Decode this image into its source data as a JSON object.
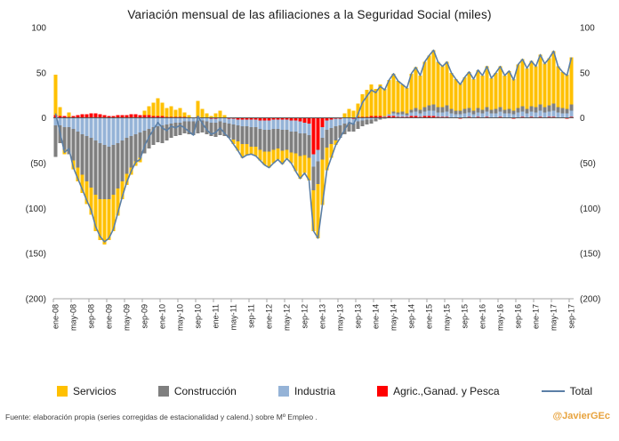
{
  "title": "Variación mensual de las afiliaciones a la Seguridad Social (miles)",
  "footer": {
    "source": "Fuente: elaboración propia  (series corregidas de estacionalidad y calend.) sobre Mº Empleo .",
    "handle": "@JavierGEc"
  },
  "chart_data": {
    "type": "bar",
    "subtype": "stacked-bars-with-total-line",
    "title": "Variación mensual de las afiliaciones a la Seguridad Social (miles)",
    "xlabel": "",
    "ylabel": "",
    "ylim": [
      -200,
      100
    ],
    "grid": false,
    "legend_position": "bottom",
    "y_ticks": [
      {
        "value": 100,
        "label": "100"
      },
      {
        "value": 50,
        "label": "50"
      },
      {
        "value": 0,
        "label": "0"
      },
      {
        "value": -50,
        "label": "(50)"
      },
      {
        "value": -100,
        "label": "(100)"
      },
      {
        "value": -150,
        "label": "(150)"
      },
      {
        "value": -200,
        "label": "(200)"
      }
    ],
    "x_tick_every": 4,
    "categories": [
      "ene-08",
      "feb-08",
      "mar-08",
      "abr-08",
      "may-08",
      "jun-08",
      "jul-08",
      "ago-08",
      "sep-08",
      "oct-08",
      "nov-08",
      "dic-08",
      "ene-09",
      "feb-09",
      "mar-09",
      "abr-09",
      "may-09",
      "jun-09",
      "jul-09",
      "ago-09",
      "sep-09",
      "oct-09",
      "nov-09",
      "dic-09",
      "ene-10",
      "feb-10",
      "mar-10",
      "abr-10",
      "may-10",
      "jun-10",
      "jul-10",
      "ago-10",
      "sep-10",
      "oct-10",
      "nov-10",
      "dic-10",
      "ene-11",
      "feb-11",
      "mar-11",
      "abr-11",
      "may-11",
      "jun-11",
      "jul-11",
      "ago-11",
      "sep-11",
      "oct-11",
      "nov-11",
      "dic-11",
      "ene-12",
      "feb-12",
      "mar-12",
      "abr-12",
      "may-12",
      "jun-12",
      "jul-12",
      "ago-12",
      "sep-12",
      "oct-12",
      "nov-12",
      "dic-12",
      "ene-13",
      "feb-13",
      "mar-13",
      "abr-13",
      "may-13",
      "jun-13",
      "jul-13",
      "ago-13",
      "sep-13",
      "oct-13",
      "nov-13",
      "dic-13",
      "ene-14",
      "feb-14",
      "mar-14",
      "abr-14",
      "may-14",
      "jun-14",
      "jul-14",
      "ago-14",
      "sep-14",
      "oct-14",
      "nov-14",
      "dic-14",
      "ene-15",
      "feb-15",
      "mar-15",
      "abr-15",
      "may-15",
      "jun-15",
      "jul-15",
      "ago-15",
      "sep-15",
      "oct-15",
      "nov-15",
      "dic-15",
      "ene-16",
      "feb-16",
      "mar-16",
      "abr-16",
      "may-16",
      "jun-16",
      "jul-16",
      "ago-16",
      "sep-16",
      "oct-16",
      "nov-16",
      "dic-16",
      "ene-17",
      "feb-17",
      "mar-17",
      "abr-17",
      "may-17",
      "jun-17",
      "jul-17",
      "ago-17",
      "sep-17"
    ],
    "stack_order": [
      "Agric.,Ganad. y Pesca",
      "Industria",
      "Construcción",
      "Servicios"
    ],
    "series": [
      {
        "name": "Servicios",
        "color": "#FFC000",
        "values": [
          45,
          10,
          -5,
          5,
          -10,
          -15,
          -20,
          -25,
          -30,
          -40,
          -45,
          -50,
          -45,
          -40,
          -30,
          -20,
          -12,
          -8,
          -5,
          -5,
          5,
          10,
          15,
          20,
          15,
          10,
          12,
          8,
          10,
          5,
          3,
          0,
          18,
          10,
          5,
          2,
          5,
          8,
          3,
          0,
          -5,
          -10,
          -15,
          -12,
          -8,
          -10,
          -12,
          -15,
          -18,
          -15,
          -12,
          -15,
          -10,
          -12,
          -20,
          -25,
          -20,
          -25,
          -45,
          -60,
          -50,
          -25,
          -15,
          -5,
          0,
          5,
          10,
          8,
          15,
          25,
          30,
          35,
          30,
          35,
          30,
          38,
          42,
          35,
          30,
          28,
          40,
          45,
          38,
          50,
          55,
          60,
          50,
          45,
          48,
          40,
          35,
          30,
          35,
          40,
          35,
          42,
          38,
          45,
          35,
          40,
          45,
          38,
          42,
          35,
          48,
          52,
          45,
          50,
          45,
          55,
          48,
          52,
          58,
          45,
          40,
          38,
          52
        ]
      },
      {
        "name": "Construcción",
        "color": "#7F7F7F",
        "values": [
          -35,
          -20,
          -25,
          -30,
          -35,
          -40,
          -45,
          -50,
          -55,
          -60,
          -62,
          -60,
          -58,
          -55,
          -50,
          -45,
          -40,
          -35,
          -30,
          -28,
          -25,
          -22,
          -20,
          -18,
          -20,
          -18,
          -16,
          -15,
          -14,
          -13,
          -14,
          -15,
          -14,
          -13,
          -14,
          -15,
          -16,
          -15,
          -15,
          -16,
          -17,
          -18,
          -20,
          -20,
          -22,
          -22,
          -23,
          -24,
          -24,
          -23,
          -22,
          -23,
          -22,
          -23,
          -24,
          -25,
          -24,
          -25,
          -26,
          -25,
          -24,
          -20,
          -18,
          -16,
          -14,
          -12,
          -10,
          -9,
          -8,
          -6,
          -5,
          -4,
          -3,
          -2,
          -1,
          0,
          2,
          2,
          3,
          2,
          3,
          4,
          4,
          5,
          6,
          7,
          6,
          6,
          7,
          5,
          4,
          4,
          5,
          5,
          4,
          5,
          4,
          5,
          4,
          5,
          5,
          4,
          5,
          4,
          5,
          6,
          5,
          6,
          6,
          7,
          6,
          7,
          8,
          6,
          6,
          5,
          7
        ]
      },
      {
        "name": "Industria",
        "color": "#95B3D7",
        "values": [
          -8,
          -8,
          -10,
          -10,
          -12,
          -15,
          -18,
          -20,
          -22,
          -25,
          -28,
          -30,
          -32,
          -30,
          -28,
          -25,
          -22,
          -20,
          -18,
          -16,
          -14,
          -12,
          -10,
          -9,
          -8,
          -7,
          -6,
          -5,
          -5,
          -4,
          -4,
          -4,
          -3,
          -3,
          -4,
          -4,
          -4,
          -4,
          -5,
          -5,
          -6,
          -6,
          -7,
          -7,
          -8,
          -8,
          -9,
          -10,
          -10,
          -10,
          -10,
          -11,
          -11,
          -12,
          -12,
          -13,
          -12,
          -13,
          -14,
          -13,
          -12,
          -10,
          -9,
          -8,
          -7,
          -6,
          -5,
          -5,
          -4,
          -3,
          -2,
          -2,
          -1,
          0,
          1,
          2,
          3,
          3,
          3,
          2,
          4,
          5,
          4,
          5,
          6,
          6,
          5,
          5,
          6,
          5,
          4,
          4,
          5,
          5,
          4,
          5,
          5,
          6,
          5,
          5,
          6,
          5,
          5,
          4,
          6,
          6,
          5,
          6,
          6,
          7,
          6,
          6,
          7,
          6,
          5,
          5,
          7
        ]
      },
      {
        "name": "Agric.,Ganad. y Pesca",
        "color": "#FF0000",
        "values": [
          3,
          2,
          2,
          1,
          2,
          3,
          4,
          4,
          5,
          5,
          4,
          3,
          2,
          2,
          3,
          3,
          3,
          4,
          4,
          3,
          3,
          3,
          2,
          2,
          2,
          1,
          1,
          1,
          1,
          1,
          0,
          0,
          1,
          0,
          0,
          -1,
          -1,
          0,
          0,
          -1,
          -1,
          -2,
          -2,
          -2,
          -2,
          -2,
          -3,
          -3,
          -3,
          -2,
          -2,
          -2,
          -2,
          -3,
          -3,
          -4,
          -5,
          -6,
          -40,
          -35,
          -10,
          -3,
          -2,
          -1,
          -1,
          0,
          0,
          -1,
          1,
          1,
          1,
          2,
          2,
          2,
          1,
          2,
          2,
          1,
          1,
          1,
          2,
          2,
          1,
          2,
          2,
          2,
          1,
          1,
          1,
          0,
          0,
          -1,
          0,
          1,
          0,
          1,
          0,
          1,
          0,
          0,
          1,
          0,
          0,
          -1,
          0,
          1,
          0,
          1,
          0,
          1,
          0,
          1,
          1,
          0,
          0,
          -1,
          1
        ]
      }
    ],
    "total_line": {
      "name": "Total",
      "color": "#5B7FA6",
      "derived": "sum_of_series"
    },
    "legend": [
      {
        "label": "Servicios",
        "color": "#FFC000",
        "marker": "box"
      },
      {
        "label": "Construcción",
        "color": "#7F7F7F",
        "marker": "box"
      },
      {
        "label": "Industria",
        "color": "#95B3D7",
        "marker": "box"
      },
      {
        "label": "Agric.,Ganad. y Pesca",
        "color": "#FF0000",
        "marker": "box"
      },
      {
        "label": "Total",
        "color": "#5B7FA6",
        "marker": "line"
      }
    ]
  }
}
